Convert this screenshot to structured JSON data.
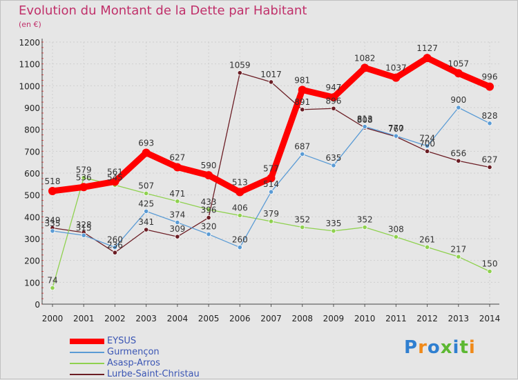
{
  "title": "Evolution du Montant de la Dette par Habitant",
  "unit": "(en €)",
  "logo_text": "Proxiti",
  "chart_data": {
    "type": "line",
    "x": [
      "2000",
      "2001",
      "2002",
      "2003",
      "2004",
      "2005",
      "2006",
      "2007",
      "2008",
      "2009",
      "2010",
      "2011",
      "2012",
      "2013",
      "2014"
    ],
    "ylim": [
      0,
      1200
    ],
    "yticks": [
      0,
      100,
      200,
      300,
      400,
      500,
      600,
      700,
      800,
      900,
      1000,
      1100,
      1200
    ],
    "grid": true,
    "legend_position": "bottom-left",
    "series": [
      {
        "name": "EYSUS",
        "color": "#ff0000",
        "values": [
          518,
          536,
          561,
          693,
          627,
          590,
          513,
          577,
          981,
          947,
          1082,
          1037,
          1127,
          1057,
          996
        ]
      },
      {
        "name": "Gurmençon",
        "color": "#5a9bd5",
        "values": [
          335,
          315,
          260,
          425,
          374,
          320,
          260,
          514,
          687,
          635,
          813,
          770,
          724,
          900,
          828
        ]
      },
      {
        "name": "Asasp-Arros",
        "color": "#8fd14f",
        "values": [
          74,
          579,
          545,
          507,
          471,
          433,
          406,
          379,
          352,
          335,
          352,
          308,
          261,
          217,
          150
        ]
      },
      {
        "name": "Lurbe-Saint-Christau",
        "color": "#6b1d24",
        "values": [
          349,
          328,
          236,
          341,
          309,
          396,
          1059,
          1017,
          891,
          896,
          808,
          767,
          700,
          656,
          627
        ]
      }
    ]
  }
}
